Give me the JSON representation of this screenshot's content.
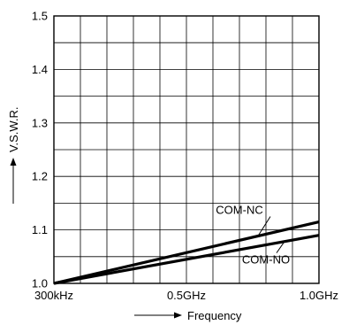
{
  "chart_data": {
    "type": "line",
    "title": "",
    "xlabel": "Frequency",
    "ylabel": "V.S.W.R.",
    "x_tick_labels": [
      {
        "x": 0,
        "label": "300kHz"
      },
      {
        "x": 0.5,
        "label": "0.5GHz"
      },
      {
        "x": 1.0,
        "label": "1.0GHz"
      }
    ],
    "xlim": [
      0,
      1.0
    ],
    "ylim": [
      1.0,
      1.5
    ],
    "y_ticks": [
      1.0,
      1.1,
      1.2,
      1.3,
      1.4,
      1.5
    ],
    "y_tick_labels": [
      "1.0",
      "1.1",
      "1.2",
      "1.3",
      "1.4",
      "1.5"
    ],
    "grid": true,
    "series": [
      {
        "name": "COM-NC",
        "x": [
          0,
          1.0
        ],
        "y": [
          1.0,
          1.115
        ]
      },
      {
        "name": "COM-NO",
        "x": [
          0,
          1.0
        ],
        "y": [
          1.0,
          1.09
        ]
      }
    ],
    "annotations": [
      {
        "text": "COM-NC",
        "series": "COM-NC",
        "x": 0.7,
        "y": 1.13
      },
      {
        "text": "COM-NO",
        "series": "COM-NO",
        "x": 0.8,
        "y": 1.037
      }
    ]
  }
}
